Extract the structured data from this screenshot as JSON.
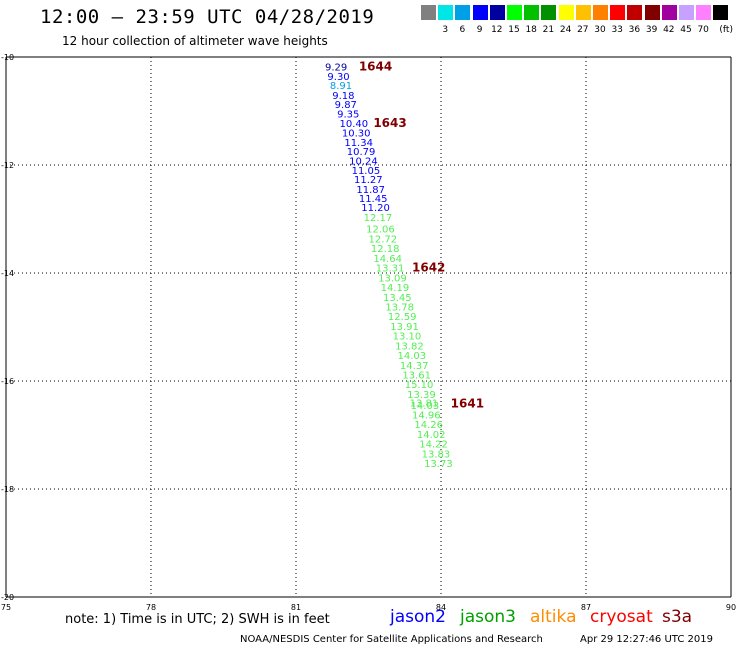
{
  "header": {
    "title": "12:00 – 23:59 UTC 04/28/2019",
    "subtitle": "12 hour collection of altimeter wave heights"
  },
  "scale": {
    "unit": "(ft)",
    "swatches": [
      {
        "color": "#808080",
        "label": ""
      },
      {
        "color": "#00e5e5",
        "label": "3"
      },
      {
        "color": "#00a0e6",
        "label": "6"
      },
      {
        "color": "#0000ff",
        "label": "9"
      },
      {
        "color": "#0000a0",
        "label": "12"
      },
      {
        "color": "#00ff00",
        "label": "15"
      },
      {
        "color": "#00c000",
        "label": "18"
      },
      {
        "color": "#009000",
        "label": "21"
      },
      {
        "color": "#ffff00",
        "label": "24"
      },
      {
        "color": "#ffc000",
        "label": "27"
      },
      {
        "color": "#ff8000",
        "label": "30"
      },
      {
        "color": "#ff0000",
        "label": "33"
      },
      {
        "color": "#c00000",
        "label": "36"
      },
      {
        "color": "#800000",
        "label": "39"
      },
      {
        "color": "#a000a0",
        "label": "42"
      },
      {
        "color": "#c8a0ff",
        "label": "45"
      },
      {
        "color": "#ff80ff",
        "label": "70"
      },
      {
        "color": "#000000",
        "label": ""
      }
    ]
  },
  "map": {
    "lat_ticks": [
      "-10",
      "-12",
      "-14",
      "-16",
      "-18",
      "-20"
    ],
    "lon_ticks": [
      "75",
      "78",
      "81",
      "84",
      "87",
      "90"
    ],
    "lat_range": [
      -20,
      -10
    ],
    "lon_range": [
      75,
      90
    ],
    "observations": [
      {
        "lat": -10.18,
        "lon": 81.6,
        "swh": "9.29",
        "color": "#0000a0"
      },
      {
        "lat": -10.35,
        "lon": 81.65,
        "swh": "9.30",
        "color": "#0000ff"
      },
      {
        "lat": -10.52,
        "lon": 81.7,
        "swh": "8.91",
        "color": "#00a0e6"
      },
      {
        "lat": -10.7,
        "lon": 81.75,
        "swh": "9.18",
        "color": "#0000ff"
      },
      {
        "lat": -10.87,
        "lon": 81.8,
        "swh": "9.87",
        "color": "#0000ff"
      },
      {
        "lat": -11.05,
        "lon": 81.85,
        "swh": "9.35",
        "color": "#0000ff"
      },
      {
        "lat": -11.22,
        "lon": 81.9,
        "swh": "10.40",
        "color": "#0000ff"
      },
      {
        "lat": -11.4,
        "lon": 81.95,
        "swh": "10.30",
        "color": "#0000ff"
      },
      {
        "lat": -11.57,
        "lon": 82.0,
        "swh": "11.34",
        "color": "#0000ff"
      },
      {
        "lat": -11.74,
        "lon": 82.05,
        "swh": "10.79",
        "color": "#0000ff"
      },
      {
        "lat": -11.92,
        "lon": 82.1,
        "swh": "10.24",
        "color": "#0000ff"
      },
      {
        "lat": -12.09,
        "lon": 82.15,
        "swh": "11.05",
        "color": "#0000ff"
      },
      {
        "lat": -12.26,
        "lon": 82.2,
        "swh": "11.27",
        "color": "#0000ff"
      },
      {
        "lat": -12.44,
        "lon": 82.25,
        "swh": "11.87",
        "color": "#0000ff"
      },
      {
        "lat": -12.61,
        "lon": 82.3,
        "swh": "11.45",
        "color": "#0000ff"
      },
      {
        "lat": -12.78,
        "lon": 82.35,
        "swh": "11.20",
        "color": "#0000ff"
      },
      {
        "lat": -12.96,
        "lon": 82.4,
        "swh": "12.17",
        "color": "#55ee55"
      },
      {
        "lat": -13.18,
        "lon": 82.45,
        "swh": "12.06",
        "color": "#55ee55"
      },
      {
        "lat": -13.36,
        "lon": 82.5,
        "swh": "12.72",
        "color": "#55ee55"
      },
      {
        "lat": -13.54,
        "lon": 82.55,
        "swh": "12.18",
        "color": "#55ee55"
      },
      {
        "lat": -13.72,
        "lon": 82.6,
        "swh": "14.64",
        "color": "#55ee55"
      },
      {
        "lat": -13.9,
        "lon": 82.65,
        "swh": "13.31",
        "color": "#55ee55"
      },
      {
        "lat": -14.08,
        "lon": 82.7,
        "swh": "13.09",
        "color": "#55ee55"
      },
      {
        "lat": -14.26,
        "lon": 82.75,
        "swh": "14.19",
        "color": "#55ee55"
      },
      {
        "lat": -14.44,
        "lon": 82.8,
        "swh": "13.45",
        "color": "#55ee55"
      },
      {
        "lat": -14.62,
        "lon": 82.85,
        "swh": "13.78",
        "color": "#55ee55"
      },
      {
        "lat": -14.8,
        "lon": 82.9,
        "swh": "12.59",
        "color": "#55ee55"
      },
      {
        "lat": -14.98,
        "lon": 82.95,
        "swh": "13.91",
        "color": "#55ee55"
      },
      {
        "lat": -15.16,
        "lon": 83.0,
        "swh": "13.10",
        "color": "#55ee55"
      },
      {
        "lat": -15.34,
        "lon": 83.05,
        "swh": "13.82",
        "color": "#55ee55"
      },
      {
        "lat": -15.52,
        "lon": 83.1,
        "swh": "14.03",
        "color": "#55ee55"
      },
      {
        "lat": -15.7,
        "lon": 83.15,
        "swh": "14.37",
        "color": "#55ee55"
      },
      {
        "lat": -15.88,
        "lon": 83.2,
        "swh": "13.61",
        "color": "#55ee55"
      },
      {
        "lat": -16.06,
        "lon": 83.25,
        "swh": "15.10",
        "color": "#55ee55"
      },
      {
        "lat": -16.24,
        "lon": 83.3,
        "swh": "13.39",
        "color": "#55ee55"
      },
      {
        "lat": -16.4,
        "lon": 83.35,
        "swh": "13.81",
        "color": "#55ee55"
      },
      {
        "lat": -16.44,
        "lon": 83.37,
        "swh": "14.03",
        "color": "#55ee55"
      },
      {
        "lat": -16.62,
        "lon": 83.4,
        "swh": "14.96",
        "color": "#55ee55"
      },
      {
        "lat": -16.8,
        "lon": 83.45,
        "swh": "14.26",
        "color": "#55ee55"
      },
      {
        "lat": -16.98,
        "lon": 83.5,
        "swh": "14.02",
        "color": "#55ee55"
      },
      {
        "lat": -17.16,
        "lon": 83.55,
        "swh": "14.22",
        "color": "#55ee55"
      },
      {
        "lat": -17.34,
        "lon": 83.6,
        "swh": "13.83",
        "color": "#55ee55"
      },
      {
        "lat": -17.52,
        "lon": 83.65,
        "swh": "13.73",
        "color": "#55ee55"
      }
    ],
    "time_labels": [
      {
        "lat": -10.18,
        "lon": 82.3,
        "text": "1644"
      },
      {
        "lat": -11.22,
        "lon": 82.6,
        "text": "1643"
      },
      {
        "lat": -13.9,
        "lon": 83.4,
        "text": "1642"
      },
      {
        "lat": -16.42,
        "lon": 84.2,
        "text": "1641"
      }
    ]
  },
  "footer": {
    "note": "note: 1) Time is in UTC; 2) SWH is in feet",
    "satellites": [
      {
        "name": "jason2",
        "color": "#0000ff"
      },
      {
        "name": "jason3",
        "color": "#00a000"
      },
      {
        "name": "altika",
        "color": "#ff8c00"
      },
      {
        "name": "cryosat",
        "color": "#ff0000"
      },
      {
        "name": "s3a",
        "color": "#800000"
      }
    ],
    "credit": "NOAA/NESDIS Center for Satellite Applications and Research",
    "timestamp": "Apr 29 12:27:46 UTC 2019"
  }
}
